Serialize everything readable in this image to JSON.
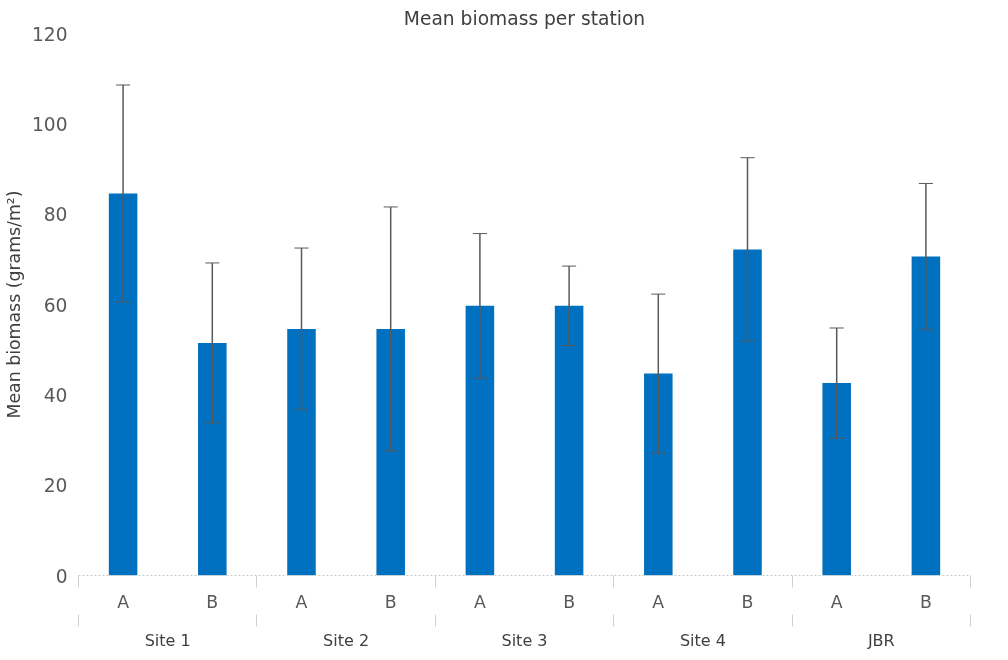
{
  "chart_data": {
    "type": "bar",
    "title": "Mean biomass per station",
    "ylabel": "Mean biomass (grams/m²)",
    "categories": [
      "A",
      "B",
      "A",
      "B",
      "A",
      "B",
      "A",
      "B",
      "A",
      "B"
    ],
    "values": [
      84.6,
      51.5,
      54.6,
      54.6,
      59.7,
      59.7,
      44.7,
      72.2,
      42.6,
      70.6
    ],
    "errors": [
      24,
      17.7,
      17.9,
      27,
      16,
      8.8,
      17.6,
      20.3,
      12.2,
      16.2
    ],
    "color": "#0070c0",
    "annotations": [
      "Site 1",
      "Site 2",
      "Site 3",
      "Site 4",
      "JBR"
    ],
    "ylim": [
      0,
      120
    ],
    "yticks": [
      0,
      20,
      40,
      60,
      80,
      100,
      120
    ],
    "grid": false
  }
}
